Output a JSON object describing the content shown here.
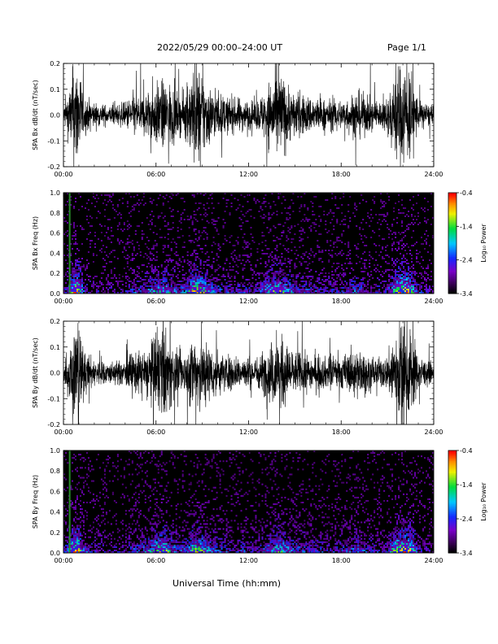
{
  "header": {
    "title": "2022/05/29  00:00–24:00 UT",
    "page": "Page 1/1"
  },
  "xaxis_label": "Universal Time (hh:mm)",
  "chart_data": [
    {
      "type": "line",
      "ylabel": "SPA Bx dB/dt (nT/sec)",
      "xlim": [
        0,
        24
      ],
      "ylim": [
        -0.2,
        0.2
      ],
      "x_tick_labels": [
        "00:00",
        "06:00",
        "12:00",
        "18:00",
        "24:00"
      ],
      "y_tick_labels": [
        "-0.2",
        "-0.1",
        "0.0",
        "0.1",
        "0.2"
      ],
      "y_ticks": [
        -0.2,
        -0.1,
        0.0,
        0.1,
        0.2
      ],
      "activity_envelope": {
        "hours": [
          0,
          0.4,
          0.7,
          1.0,
          1.3,
          2,
          3,
          4,
          4.5,
          5,
          5.5,
          6,
          6.5,
          7,
          7.5,
          8,
          8.5,
          9,
          9.5,
          10,
          10.5,
          11,
          11.5,
          12,
          12.5,
          13,
          13.5,
          14,
          14.5,
          15,
          16,
          17,
          18,
          18.5,
          19,
          20,
          20.5,
          21,
          21.5,
          22,
          22.5,
          23,
          23.5,
          24
        ],
        "amplitude": [
          0.05,
          0.18,
          0.35,
          0.35,
          0.12,
          0.08,
          0.06,
          0.08,
          0.14,
          0.12,
          0.16,
          0.2,
          0.22,
          0.2,
          0.12,
          0.16,
          0.35,
          0.28,
          0.18,
          0.14,
          0.12,
          0.1,
          0.11,
          0.09,
          0.09,
          0.15,
          0.25,
          0.3,
          0.2,
          0.14,
          0.12,
          0.1,
          0.1,
          0.12,
          0.16,
          0.1,
          0.09,
          0.11,
          0.3,
          0.35,
          0.3,
          0.1,
          0.08,
          0.05
        ]
      }
    },
    {
      "type": "heatmap",
      "ylabel": "SPA Bx Freq (Hz)",
      "xlim": [
        0,
        24
      ],
      "ylim": [
        0,
        1.0
      ],
      "x_tick_labels": [
        "00:00",
        "06:00",
        "12:00",
        "18:00",
        "24:00"
      ],
      "y_tick_labels": [
        "0.0",
        "0.2",
        "0.4",
        "0.6",
        "0.8",
        "1.0"
      ],
      "y_ticks": [
        0,
        0.2,
        0.4,
        0.6,
        0.8,
        1.0
      ],
      "colorbar": {
        "label": "Log₁₀ Power",
        "range": [
          -3.4,
          -0.4
        ],
        "tick_labels": [
          "-3.4",
          "-2.4",
          "-1.4",
          "-0.4"
        ],
        "ticks": [
          -3.4,
          -2.4,
          -1.4,
          -0.4
        ]
      }
    },
    {
      "type": "line",
      "ylabel": "SPA By dB/dt (nT/sec)",
      "xlim": [
        0,
        24
      ],
      "ylim": [
        -0.2,
        0.2
      ],
      "x_tick_labels": [
        "00:00",
        "06:00",
        "12:00",
        "18:00",
        "24:00"
      ],
      "y_tick_labels": [
        "-0.2",
        "-0.1",
        "0.0",
        "0.1",
        "0.2"
      ],
      "y_ticks": [
        -0.2,
        -0.1,
        0.0,
        0.1,
        0.2
      ],
      "activity_envelope": {
        "hours": [
          0,
          0.4,
          0.7,
          1.0,
          1.3,
          2,
          3,
          4,
          4.5,
          5,
          5.5,
          6,
          6.5,
          7,
          7.5,
          8,
          8.5,
          9,
          9.5,
          10,
          10.5,
          11,
          11.5,
          12,
          12.5,
          13,
          13.5,
          14,
          14.5,
          15,
          16,
          17,
          18,
          18.5,
          19,
          20,
          20.5,
          21,
          21.5,
          22,
          22.5,
          23,
          23.5,
          24
        ],
        "amplitude": [
          0.05,
          0.2,
          0.35,
          0.35,
          0.14,
          0.09,
          0.07,
          0.08,
          0.14,
          0.13,
          0.18,
          0.25,
          0.3,
          0.2,
          0.12,
          0.14,
          0.3,
          0.25,
          0.17,
          0.14,
          0.12,
          0.1,
          0.11,
          0.1,
          0.1,
          0.14,
          0.2,
          0.24,
          0.18,
          0.14,
          0.12,
          0.1,
          0.11,
          0.13,
          0.16,
          0.1,
          0.09,
          0.11,
          0.3,
          0.35,
          0.3,
          0.11,
          0.08,
          0.05
        ]
      }
    },
    {
      "type": "heatmap",
      "ylabel": "SPA By Freq (Hz)",
      "xlim": [
        0,
        24
      ],
      "ylim": [
        0,
        1.0
      ],
      "x_tick_labels": [
        "00:00",
        "06:00",
        "12:00",
        "18:00",
        "24:00"
      ],
      "y_tick_labels": [
        "0.0",
        "0.2",
        "0.4",
        "0.6",
        "0.8",
        "1.0"
      ],
      "y_ticks": [
        0,
        0.2,
        0.4,
        0.6,
        0.8,
        1.0
      ],
      "colorbar": {
        "label": "Log₁₀ Power",
        "range": [
          -3.4,
          -0.4
        ],
        "tick_labels": [
          "-3.4",
          "-2.4",
          "-1.4",
          "-0.4"
        ],
        "ticks": [
          -3.4,
          -2.4,
          -1.4,
          -0.4
        ]
      }
    }
  ]
}
